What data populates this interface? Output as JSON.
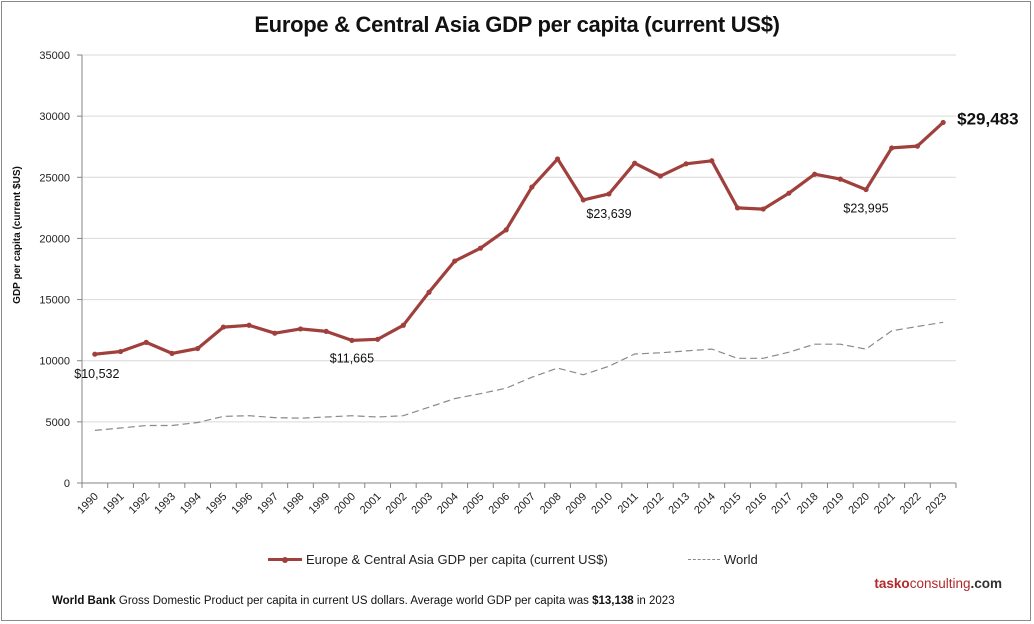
{
  "chart_data": {
    "type": "line",
    "title": "Europe & Central Asia GDP per capita (current US$)",
    "xlabel": "",
    "ylabel": "GDP per capita (current $US)",
    "ylim": [
      0,
      35000
    ],
    "yticks": [
      "0",
      "5000",
      "10000",
      "15000",
      "20000",
      "25000",
      "30000",
      "35000"
    ],
    "ytick_values": [
      0,
      5000,
      10000,
      15000,
      20000,
      25000,
      30000,
      35000
    ],
    "grid": true,
    "legend_position": "bottom",
    "categories": [
      "1990",
      "1991",
      "1992",
      "1993",
      "1994",
      "1995",
      "1996",
      "1997",
      "1998",
      "1999",
      "2000",
      "2001",
      "2002",
      "2003",
      "2004",
      "2005",
      "2006",
      "2007",
      "2008",
      "2009",
      "2010",
      "2011",
      "2012",
      "2013",
      "2014",
      "2015",
      "2016",
      "2017",
      "2018",
      "2019",
      "2020",
      "2021",
      "2022",
      "2023"
    ],
    "series": [
      {
        "name": "Europe & Central Asia GDP per capita (current US$)",
        "color": "#a0403d",
        "style": "solid-markers",
        "values": [
          10532,
          10750,
          11500,
          10600,
          11000,
          12750,
          12900,
          12250,
          12600,
          12400,
          11665,
          11750,
          12900,
          15600,
          18150,
          19200,
          20700,
          24200,
          26500,
          23150,
          23639,
          26150,
          25100,
          26100,
          26350,
          22500,
          22400,
          23700,
          25250,
          24850,
          23995,
          27400,
          27550,
          29483
        ]
      },
      {
        "name": "World",
        "color": "#8a8a8a",
        "style": "dashed",
        "values": [
          4300,
          4500,
          4700,
          4700,
          4950,
          5450,
          5500,
          5350,
          5300,
          5400,
          5500,
          5400,
          5500,
          6200,
          6900,
          7300,
          7750,
          8650,
          9400,
          8850,
          9550,
          10550,
          10650,
          10800,
          10950,
          10200,
          10200,
          10700,
          11350,
          11350,
          10950,
          12450,
          12800,
          13138
        ]
      }
    ],
    "annotations": [
      {
        "year": "1990",
        "text": "$10,532",
        "emphasis": false
      },
      {
        "year": "2000",
        "text": "$11,665",
        "emphasis": false
      },
      {
        "year": "2010",
        "text": "$23,639",
        "emphasis": false
      },
      {
        "year": "2020",
        "text": "$23,995",
        "emphasis": false
      },
      {
        "year": "2023",
        "text": "$29,483",
        "emphasis": true
      }
    ]
  },
  "legend": {
    "series_1": "Europe & Central Asia GDP per capita (current US$)",
    "series_2": "World"
  },
  "brand": {
    "part1": "tasko",
    "part2": "consulting",
    "part3": ".com"
  },
  "footnote": {
    "source": "World Bank",
    "text_1": " Gross Domestic Product per capita in current US dollars.  Average world GDP per capita was ",
    "highlight": "$13,138",
    "text_2": " in 2023"
  }
}
